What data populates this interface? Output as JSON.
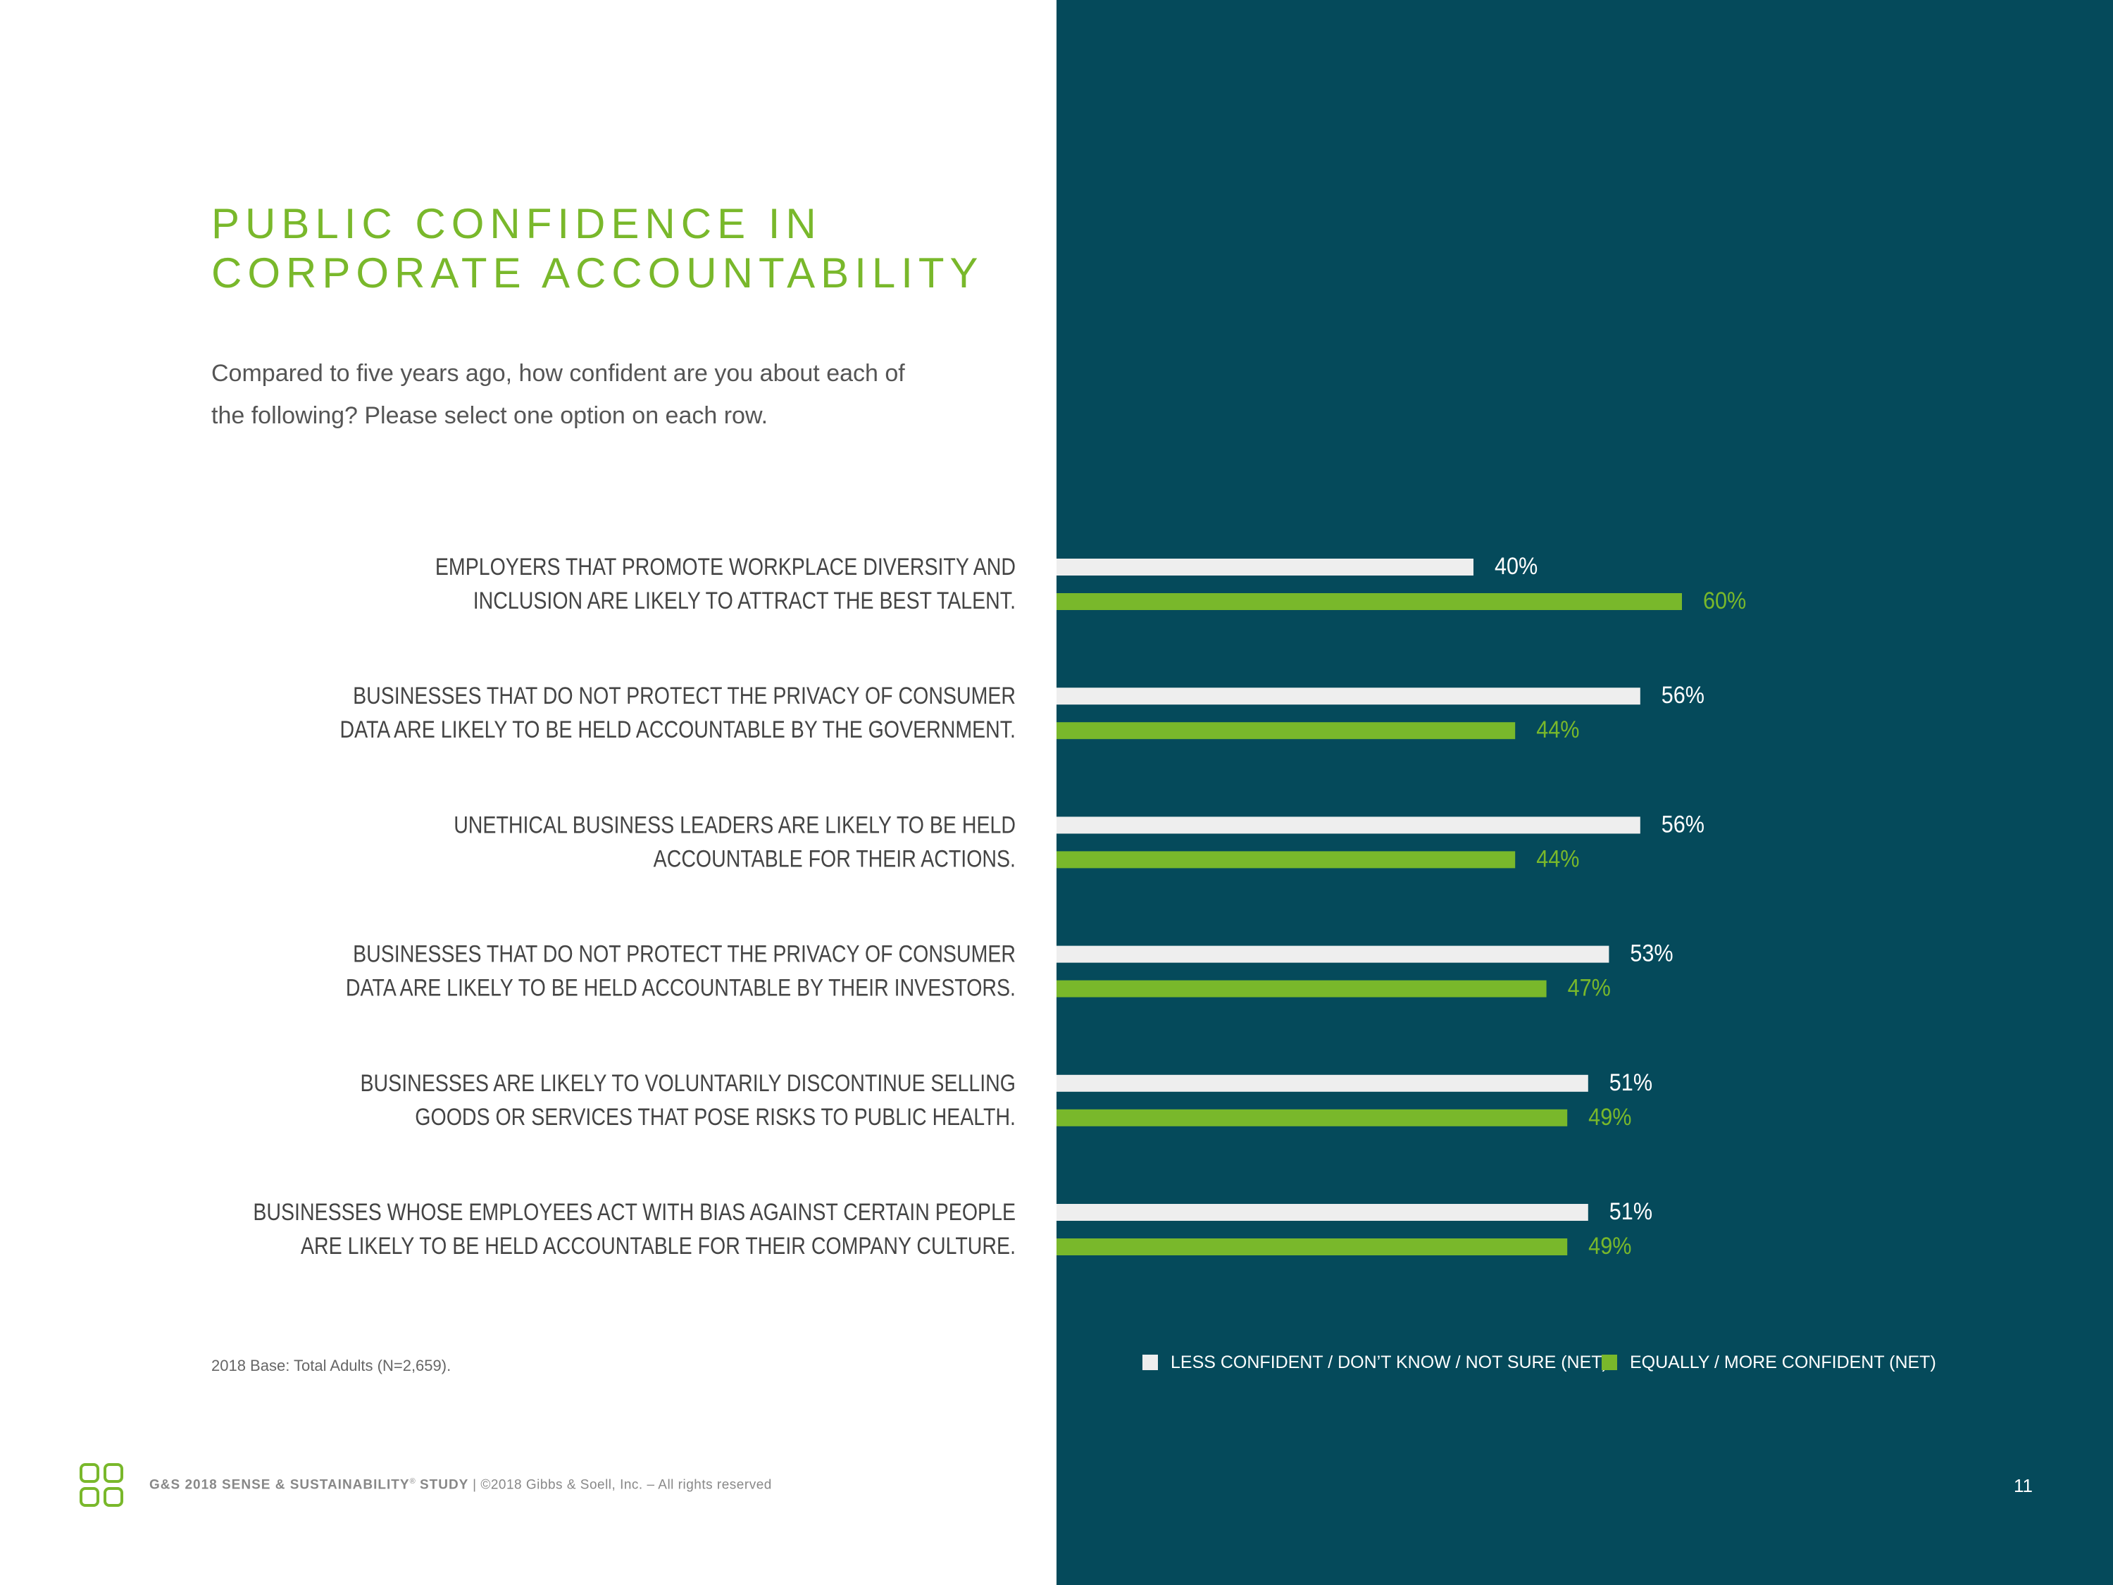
{
  "colors": {
    "panel": "#054a5b",
    "title": "#79b82b",
    "less_confident": "#eeeeee",
    "more_confident": "#79b82b",
    "category_text": "#444444"
  },
  "page": {
    "title_line1": "PUBLIC CONFIDENCE IN",
    "title_line2": "CORPORATE ACCOUNTABILITY",
    "subtitle": "Compared to five years ago, how confident are you about each of the following? Please select one option on each row.",
    "footnote": "2018 Base: Total Adults (N=2,659).",
    "page_number": "11"
  },
  "footer": {
    "logo_icon": "four-rounded-squares-icon",
    "study": "G&S 2018 SENSE & SUSTAINABILITY",
    "registered": "®",
    "study_suffix": "STUDY",
    "separator": "|",
    "copyright": "©2018 Gibbs & Soell, Inc. – All rights reserved"
  },
  "chart_data": {
    "type": "bar",
    "orientation": "horizontal",
    "categories": [
      [
        "EMPLOYERS THAT PROMOTE WORKPLACE DIVERSITY AND",
        "INCLUSION ARE LIKELY TO ATTRACT THE BEST TALENT."
      ],
      [
        "BUSINESSES THAT DO NOT PROTECT THE PRIVACY OF CONSUMER",
        "DATA ARE LIKELY TO BE HELD ACCOUNTABLE BY THE GOVERNMENT."
      ],
      [
        "UNETHICAL BUSINESS LEADERS ARE LIKELY TO BE HELD",
        "ACCOUNTABLE FOR THEIR ACTIONS."
      ],
      [
        "BUSINESSES THAT DO NOT PROTECT THE PRIVACY OF CONSUMER",
        "DATA ARE LIKELY TO BE HELD ACCOUNTABLE BY THEIR INVESTORS."
      ],
      [
        "BUSINESSES ARE LIKELY TO VOLUNTARILY DISCONTINUE SELLING",
        "GOODS OR SERVICES THAT POSE RISKS TO PUBLIC HEALTH."
      ],
      [
        "BUSINESSES WHOSE EMPLOYEES ACT WITH BIAS AGAINST CERTAIN PEOPLE",
        "ARE LIKELY TO BE HELD ACCOUNTABLE FOR THEIR COMPANY CULTURE."
      ]
    ],
    "series": [
      {
        "name": "LESS CONFIDENT / DON’T KNOW / NOT SURE (NET)",
        "values": [
          40,
          56,
          56,
          53,
          51,
          51
        ],
        "labels": [
          "40%",
          "56%",
          "56%",
          "53%",
          "51%",
          "51%"
        ]
      },
      {
        "name": "EQUALLY / MORE CONFIDENT (NET)",
        "values": [
          60,
          44,
          44,
          47,
          49,
          49
        ],
        "labels": [
          "60%",
          "44%",
          "44%",
          "47%",
          "49%",
          "49%"
        ]
      }
    ],
    "xlim": [
      0,
      100
    ],
    "legend_position": "bottom",
    "grid": false
  }
}
